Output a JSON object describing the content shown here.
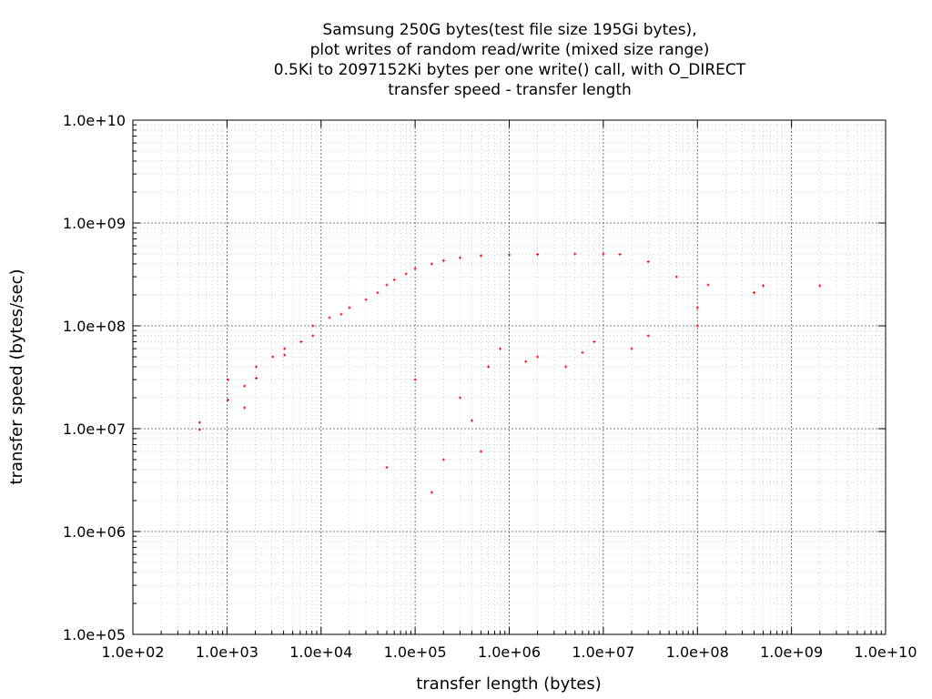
{
  "chart_data": {
    "type": "scatter",
    "title_lines": [
      "Samsung 250G bytes(test file size 195Gi bytes),",
      "plot writes of random read/write (mixed size range)",
      "0.5Ki to 2097152Ki bytes per one write() call, with O_DIRECT",
      "transfer speed - transfer length"
    ],
    "xlabel": "transfer length (bytes)",
    "ylabel": "transfer speed (bytes/sec)",
    "x_scale": "log",
    "y_scale": "log",
    "xlim": [
      100,
      10000000000
    ],
    "ylim": [
      100000,
      10000000000
    ],
    "x_ticks": [
      {
        "value": 100,
        "label": "1.0e+02"
      },
      {
        "value": 1000,
        "label": "1.0e+03"
      },
      {
        "value": 10000,
        "label": "1.0e+04"
      },
      {
        "value": 100000,
        "label": "1.0e+05"
      },
      {
        "value": 1000000,
        "label": "1.0e+06"
      },
      {
        "value": 10000000,
        "label": "1.0e+07"
      },
      {
        "value": 100000000,
        "label": "1.0e+08"
      },
      {
        "value": 1000000000,
        "label": "1.0e+09"
      },
      {
        "value": 10000000000,
        "label": "1.0e+10"
      }
    ],
    "y_ticks": [
      {
        "value": 100000,
        "label": "1.0e+05"
      },
      {
        "value": 1000000,
        "label": "1.0e+06"
      },
      {
        "value": 10000000,
        "label": "1.0e+07"
      },
      {
        "value": 100000000,
        "label": "1.0e+08"
      },
      {
        "value": 1000000000,
        "label": "1.0e+09"
      },
      {
        "value": 10000000000,
        "label": "1.0e+10"
      }
    ],
    "grid": true,
    "legend": "none",
    "marker_color": "#ff0000",
    "series": [
      {
        "values": [
          [
            512,
            9800000
          ],
          [
            512,
            11500000
          ],
          [
            1024,
            19000000
          ],
          [
            1024,
            30000000
          ],
          [
            1536,
            16000000
          ],
          [
            1536,
            26000000
          ],
          [
            2048,
            31000000
          ],
          [
            2048,
            40000000
          ],
          [
            3072,
            50000000
          ],
          [
            4096,
            52000000
          ],
          [
            4096,
            60000000
          ],
          [
            6144,
            70000000
          ],
          [
            8192,
            80000000
          ],
          [
            8192,
            100000000
          ],
          [
            12288,
            120000000
          ],
          [
            16384,
            130000000
          ],
          [
            20000,
            150000000
          ],
          [
            30000,
            180000000
          ],
          [
            40000,
            210000000
          ],
          [
            50000,
            250000000
          ],
          [
            60000,
            280000000
          ],
          [
            80000,
            320000000
          ],
          [
            100000,
            360000000
          ],
          [
            150000,
            400000000
          ],
          [
            200000,
            430000000
          ],
          [
            300000,
            460000000
          ],
          [
            500000,
            480000000
          ],
          [
            1000000,
            490000000
          ],
          [
            2000000,
            495000000
          ],
          [
            5000000,
            500000000
          ],
          [
            10000000,
            500000000
          ],
          [
            15000000,
            495000000
          ],
          [
            30000000,
            420000000
          ],
          [
            60000000,
            300000000
          ],
          [
            130000000,
            250000000
          ],
          [
            500000000,
            245000000
          ],
          [
            2000000000,
            245000000
          ],
          [
            50000,
            4200000
          ],
          [
            150000,
            2400000
          ],
          [
            200000,
            5000000
          ],
          [
            500000,
            6000000
          ],
          [
            100000,
            30000000
          ],
          [
            300000,
            20000000
          ],
          [
            400000,
            12000000
          ],
          [
            600000,
            40000000
          ],
          [
            800000,
            60000000
          ],
          [
            1500000,
            45000000
          ],
          [
            2000000,
            50000000
          ],
          [
            4000000,
            40000000
          ],
          [
            6000000,
            55000000
          ],
          [
            8000000,
            70000000
          ],
          [
            20000000,
            60000000
          ],
          [
            30000000,
            80000000
          ],
          [
            100000000,
            100000000
          ],
          [
            100000000,
            150000000
          ],
          [
            400000000,
            210000000
          ]
        ]
      }
    ]
  }
}
